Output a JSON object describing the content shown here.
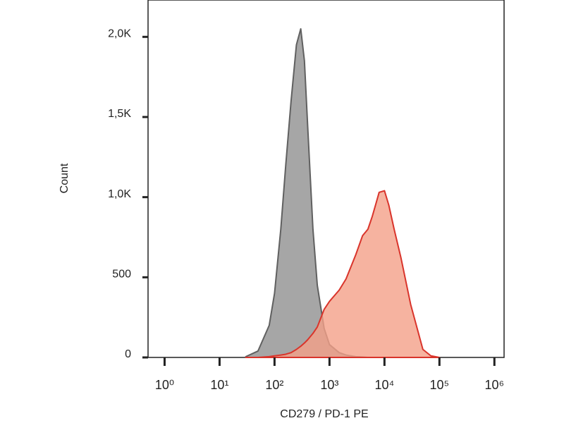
{
  "chart_data": {
    "type": "area",
    "x_label": "CD279 / PD-1 PE",
    "y_label": "Count",
    "log_x": true,
    "xlim": [
      0.5,
      1500000
    ],
    "ylim": [
      0,
      2230
    ],
    "xticks": [
      {
        "value": 1,
        "label": "10⁰"
      },
      {
        "value": 10,
        "label": "10¹"
      },
      {
        "value": 100,
        "label": "10²"
      },
      {
        "value": 1000,
        "label": "10³"
      },
      {
        "value": 10000,
        "label": "10⁴"
      },
      {
        "value": 100000,
        "label": "10⁵"
      },
      {
        "value": 1000000,
        "label": "10⁶"
      }
    ],
    "yticks": [
      0,
      500,
      {
        "value": 1000,
        "label": "1,0K"
      },
      {
        "value": 1500,
        "label": "1,5K"
      },
      {
        "value": 2000,
        "label": "2,0K"
      }
    ],
    "x": [
      30,
      50,
      80,
      100,
      130,
      160,
      200,
      250,
      300,
      350,
      400,
      500,
      600,
      800,
      1000,
      1500,
      2000,
      3000,
      4000,
      5000,
      6000,
      7000,
      8000,
      10000,
      12000,
      15000,
      20000,
      30000,
      50000,
      70000,
      100000
    ],
    "series": [
      {
        "color": "#a6a6a6",
        "stroke": "#606060",
        "values": [
          5,
          40,
          200,
          400,
          800,
          1200,
          1600,
          1950,
          2050,
          1850,
          1450,
          800,
          450,
          180,
          80,
          30,
          15,
          5,
          3,
          0,
          0,
          0,
          0,
          0,
          0,
          0,
          0,
          0,
          0,
          0,
          0
        ]
      },
      {
        "color": "#f4a088",
        "stroke": "#d9342b",
        "values": [
          0,
          0,
          5,
          10,
          15,
          20,
          30,
          50,
          70,
          90,
          110,
          150,
          190,
          300,
          350,
          420,
          490,
          640,
          760,
          800,
          880,
          960,
          1030,
          1040,
          950,
          800,
          620,
          330,
          50,
          10,
          0
        ]
      }
    ]
  }
}
